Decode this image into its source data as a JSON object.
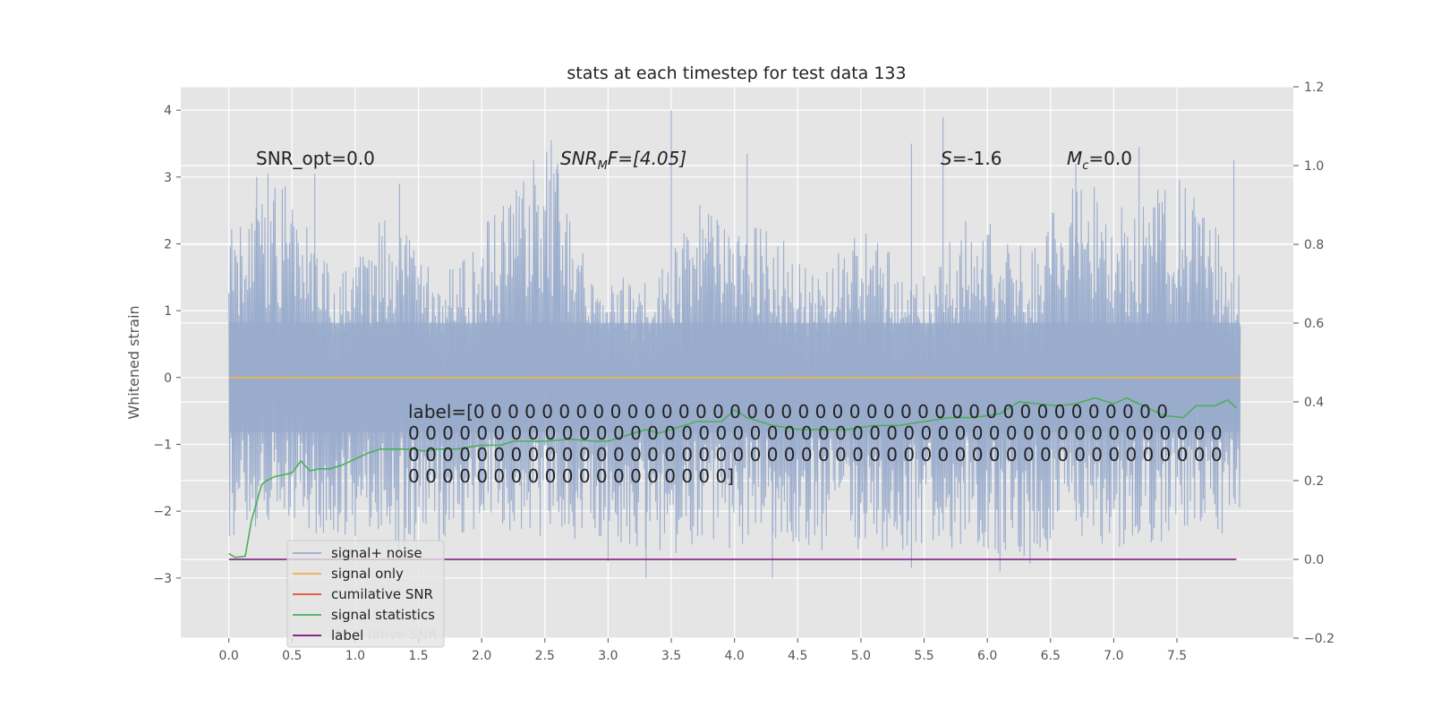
{
  "chart_data": {
    "type": "line",
    "title": "stats at each timestep for test data 133",
    "ylabel": "Whitened strain",
    "xlabel": "",
    "grid": true,
    "xlim": [
      -0.38,
      8.42
    ],
    "ylim": [
      -3.9,
      4.35
    ],
    "y2lim": [
      -0.2,
      1.2
    ],
    "x_ticks": [
      0.0,
      0.5,
      1.0,
      1.5,
      2.0,
      2.5,
      3.0,
      3.5,
      4.0,
      4.5,
      5.0,
      5.5,
      6.0,
      6.5,
      7.0,
      7.5
    ],
    "x_tick_labels": [
      "0.0",
      "0.5",
      "1.0",
      "1.5",
      "2.0",
      "2.5",
      "3.0",
      "3.5",
      "4.0",
      "4.5",
      "5.0",
      "5.5",
      "6.0",
      "6.5",
      "7.0",
      "7.5"
    ],
    "y_ticks": [
      4,
      3,
      2,
      1,
      0,
      -1,
      -2,
      -3
    ],
    "y_tick_labels": [
      "4",
      "3",
      "2",
      "1",
      "0",
      "−1",
      "−2",
      "−3"
    ],
    "y2_ticks": [
      1.2,
      1.0,
      0.8,
      0.6,
      0.4,
      0.2,
      0.0,
      -0.2
    ],
    "y2_tick_labels": [
      "1.2",
      "1.0",
      "0.8",
      "0.6",
      "0.4",
      "0.2",
      "0.0",
      "−0.2"
    ],
    "noise_envelope": {
      "x_range": [
        0.0,
        8.0
      ],
      "band_max": [
        2.2,
        3.0,
        1.5,
        2.5,
        1.5,
        2.5,
        3.6,
        1.5,
        1.5,
        3.0,
        2.5,
        1.5,
        2.3,
        1.5,
        2.5,
        2.0,
        3.1,
        2.5,
        3.2,
        1.5
      ],
      "band_min": [
        -2.4,
        -2.2,
        -2.4,
        -2.6,
        -2.5,
        -2.6,
        -2.4,
        -2.6,
        -2.6,
        -2.7,
        -2.5,
        -2.6,
        -2.6,
        -2.8,
        -2.5,
        -2.9,
        -2.6,
        -2.6,
        -2.4,
        -2.4
      ],
      "peaks": [
        {
          "x": 0.22,
          "y": 3.0
        },
        {
          "x": 0.31,
          "y": 3.05
        },
        {
          "x": 0.68,
          "y": 3.05
        },
        {
          "x": 1.35,
          "y": 2.9
        },
        {
          "x": 2.55,
          "y": 3.55
        },
        {
          "x": 2.6,
          "y": 3.2
        },
        {
          "x": 3.5,
          "y": 4.0
        },
        {
          "x": 4.1,
          "y": 3.35
        },
        {
          "x": 5.4,
          "y": 3.5
        },
        {
          "x": 5.65,
          "y": 3.9
        },
        {
          "x": 6.7,
          "y": 3.2
        },
        {
          "x": 7.2,
          "y": 3.45
        },
        {
          "x": 7.95,
          "y": 3.25
        }
      ],
      "troughs": [
        {
          "x": 3.3,
          "y": -3.0
        },
        {
          "x": 4.3,
          "y": -3.0
        },
        {
          "x": 5.4,
          "y": -2.85
        },
        {
          "x": 6.1,
          "y": -2.9
        },
        {
          "x": 3.0,
          "y": -2.75
        }
      ]
    },
    "series": [
      {
        "name": "signal+ noise",
        "color": "#98abcc",
        "axis": "left",
        "style": "noise"
      },
      {
        "name": "signal only",
        "color": "#f0b24a",
        "axis": "left",
        "x": [
          0.0,
          8.0
        ],
        "values": [
          0.0,
          0.0
        ]
      },
      {
        "name": "cumilative SNR",
        "color": "#e24a33",
        "axis": "right",
        "x": [],
        "values": []
      },
      {
        "name": "signal statistics",
        "color": "#4caf5a",
        "axis": "right",
        "x": [
          0.0,
          0.05,
          0.13,
          0.18,
          0.26,
          0.3,
          0.36,
          0.44,
          0.5,
          0.57,
          0.64,
          0.72,
          0.8,
          0.9,
          1.0,
          1.1,
          1.2,
          1.35,
          1.45,
          1.55,
          1.65,
          1.8,
          2.0,
          2.15,
          2.25,
          2.4,
          2.5,
          2.7,
          2.9,
          3.0,
          3.2,
          3.3,
          3.4,
          3.5,
          3.6,
          3.7,
          3.8,
          3.9,
          4.0,
          4.1,
          4.3,
          4.5,
          4.7,
          4.9,
          5.1,
          5.3,
          5.5,
          5.7,
          5.9,
          6.1,
          6.25,
          6.4,
          6.55,
          6.7,
          6.85,
          7.0,
          7.1,
          7.3,
          7.4,
          7.55,
          7.65,
          7.8,
          7.9,
          7.97
        ],
        "values": [
          0.015,
          0.005,
          0.008,
          0.1,
          0.19,
          0.2,
          0.21,
          0.215,
          0.22,
          0.25,
          0.225,
          0.23,
          0.23,
          0.24,
          0.255,
          0.27,
          0.28,
          0.28,
          0.28,
          0.275,
          0.28,
          0.28,
          0.29,
          0.29,
          0.3,
          0.3,
          0.3,
          0.305,
          0.3,
          0.3,
          0.32,
          0.33,
          0.32,
          0.33,
          0.34,
          0.35,
          0.35,
          0.35,
          0.38,
          0.36,
          0.34,
          0.33,
          0.33,
          0.33,
          0.34,
          0.34,
          0.35,
          0.36,
          0.36,
          0.37,
          0.4,
          0.395,
          0.39,
          0.395,
          0.41,
          0.395,
          0.41,
          0.38,
          0.365,
          0.36,
          0.39,
          0.39,
          0.405,
          0.385
        ]
      },
      {
        "name": "label",
        "color": "#7b0f7b",
        "axis": "right",
        "x": [
          0.0,
          7.97
        ],
        "values": [
          0.0,
          0.0
        ]
      }
    ],
    "legend": {
      "position": "lower-left",
      "entries": [
        "signal+ noise",
        "signal only",
        "cumilative SNR",
        "signal statistics",
        "label"
      ],
      "overlap_text": "lative SNR"
    },
    "annotations": {
      "snr_opt": "SNR_opt=0.0",
      "snr_mf_base": "SNR",
      "snr_mf_sub": "M",
      "snr_mf_rest": "F=[4.05]",
      "s_label": "S",
      "s_rest": "=-1.6",
      "mc_label": "M",
      "mc_sub": "c",
      "mc_rest": "=0.0",
      "label_lines": [
        "label=[0 0 0 0 0 0 0 0 0 0 0 0 0 0 0 0 0 0 0 0 0 0 0 0 0 0 0 0 0 0 0 0 0 0 0 0 0 0 0 0 0",
        " 0 0 0 0 0 0 0 0 0 0 0 0 0 0 0 0 0 0 0 0 0 0 0 0 0 0 0 0 0 0 0 0 0 0 0 0 0 0 0 0 0 0 0 0 0 0 0 0",
        " 0 0 0 0 0 0 0 0 0 0 0 0 0 0 0 0 0 0 0 0 0 0 0 0 0 0 0 0 0 0 0 0 0 0 0 0 0 0 0 0 0 0 0 0 0 0 0 0",
        " 0 0 0 0 0 0 0 0 0 0 0 0 0 0 0 0 0 0 0]"
      ]
    }
  }
}
